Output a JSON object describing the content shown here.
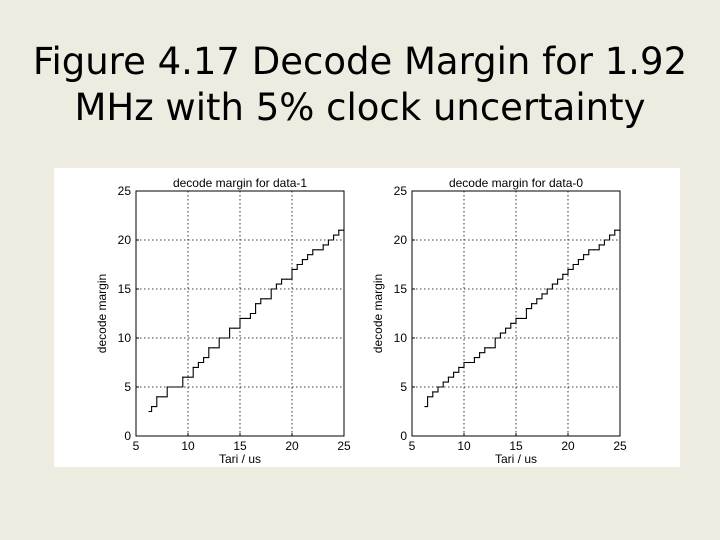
{
  "slide": {
    "title_line1": "Figure 4.17 Decode Margin for 1.92",
    "title_line2": "MHz with 5% clock uncertainty"
  },
  "colors": {
    "background": "#eeebe1",
    "panel": "#ffffff",
    "line": "#000000",
    "grid": "#000000"
  },
  "chart_data": [
    {
      "type": "line",
      "title": "decode margin for data-1",
      "xlabel": "Tari / us",
      "ylabel": "decode margin",
      "xlim": [
        5,
        25
      ],
      "ylim": [
        0,
        25
      ],
      "xticks": [
        "5",
        "10",
        "15",
        "20",
        "25"
      ],
      "yticks": [
        "0",
        "5",
        "10",
        "15",
        "20",
        "25"
      ],
      "grid": true,
      "step": true,
      "series": [
        {
          "x": [
            6.25,
            6.5,
            7.0,
            7.5,
            8.0,
            8.5,
            9.0,
            9.5,
            10.0,
            10.5,
            11.0,
            11.5,
            12.0,
            12.5,
            13.0,
            13.5,
            14.0,
            14.5,
            15.0,
            15.5,
            16.0,
            16.5,
            17.0,
            17.5,
            18.0,
            18.5,
            19.0,
            19.5,
            20.0,
            20.5,
            21.0,
            21.5,
            22.0,
            22.5,
            23.0,
            23.5,
            24.0,
            24.5,
            25.0
          ],
          "y": [
            2.5,
            3.0,
            4.0,
            4.0,
            5.0,
            5.0,
            5.0,
            6.0,
            6.0,
            7.0,
            7.5,
            8.0,
            9.0,
            9.0,
            10.0,
            10.0,
            11.0,
            11.0,
            12.0,
            12.0,
            12.5,
            13.5,
            14.0,
            14.0,
            15.0,
            15.5,
            16.0,
            16.0,
            17.0,
            17.5,
            18.0,
            18.5,
            19.0,
            19.0,
            19.5,
            20.0,
            20.5,
            21.0,
            21.0
          ]
        }
      ]
    },
    {
      "type": "line",
      "title": "decode margin for data-0",
      "xlabel": "Tari / us",
      "ylabel": "decode margin",
      "xlim": [
        5,
        25
      ],
      "ylim": [
        0,
        25
      ],
      "xticks": [
        "5",
        "10",
        "15",
        "20",
        "25"
      ],
      "yticks": [
        "0",
        "5",
        "10",
        "15",
        "20",
        "25"
      ],
      "grid": true,
      "step": true,
      "series": [
        {
          "x": [
            6.25,
            6.5,
            7.0,
            7.5,
            8.0,
            8.5,
            9.0,
            9.5,
            10.0,
            10.5,
            11.0,
            11.5,
            12.0,
            12.5,
            13.0,
            13.5,
            14.0,
            14.5,
            15.0,
            15.5,
            16.0,
            16.5,
            17.0,
            17.5,
            18.0,
            18.5,
            19.0,
            19.5,
            20.0,
            20.5,
            21.0,
            21.5,
            22.0,
            22.5,
            23.0,
            23.5,
            24.0,
            24.5,
            25.0
          ],
          "y": [
            3.0,
            4.0,
            4.5,
            5.0,
            5.5,
            6.0,
            6.5,
            7.0,
            7.5,
            7.5,
            8.0,
            8.5,
            9.0,
            9.0,
            10.0,
            10.5,
            11.0,
            11.5,
            12.0,
            12.0,
            13.0,
            13.5,
            14.0,
            14.5,
            15.0,
            15.5,
            16.0,
            16.5,
            17.0,
            17.5,
            18.0,
            18.5,
            19.0,
            19.0,
            19.5,
            20.0,
            20.5,
            21.0,
            21.0
          ]
        }
      ]
    }
  ]
}
